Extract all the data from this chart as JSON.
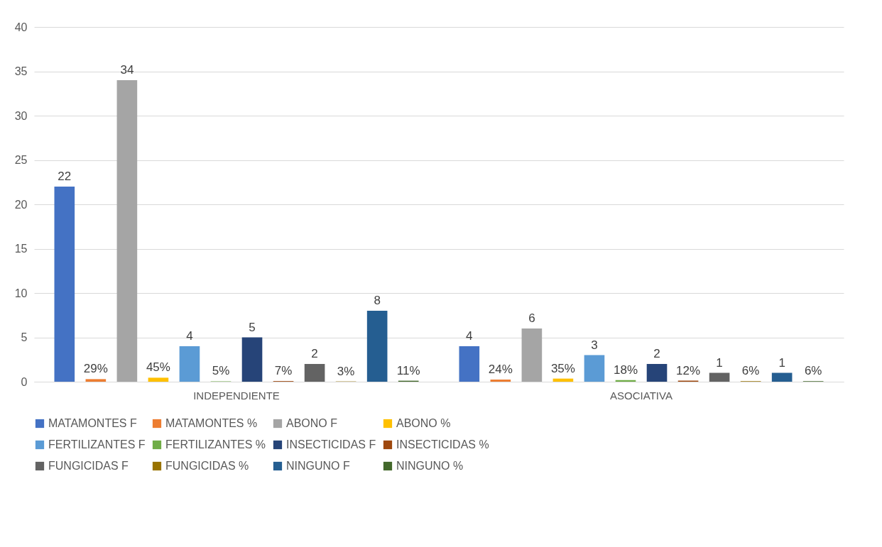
{
  "chart_data": {
    "type": "bar",
    "categories": [
      "INDEPENDIENTE",
      "ASOCIATIVA"
    ],
    "ylim": [
      0,
      40
    ],
    "yticks": [
      0,
      5,
      10,
      15,
      20,
      25,
      30,
      35,
      40
    ],
    "grid": "y",
    "legend": "bottom",
    "series": [
      {
        "name": "MATAMONTES F",
        "color": "#4472c4",
        "values": [
          22,
          4
        ],
        "value_labels": [
          "22",
          "4"
        ]
      },
      {
        "name": "MATAMONTES %",
        "color": "#ed7d31",
        "values": [
          0.29,
          0.24
        ],
        "value_labels": [
          "29%",
          "24%"
        ]
      },
      {
        "name": "ABONO F",
        "color": "#a5a5a5",
        "values": [
          34,
          6
        ],
        "value_labels": [
          "34",
          "6"
        ]
      },
      {
        "name": "ABONO %",
        "color": "#ffc000",
        "values": [
          0.45,
          0.35
        ],
        "value_labels": [
          "45%",
          "35%"
        ]
      },
      {
        "name": "FERTILIZANTES F",
        "color": "#5b9bd5",
        "values": [
          4,
          3
        ],
        "value_labels": [
          "4",
          "3"
        ]
      },
      {
        "name": "FERTILIZANTES %",
        "color": "#70ad47",
        "values": [
          0.05,
          0.18
        ],
        "value_labels": [
          "5%",
          "18%"
        ]
      },
      {
        "name": "INSECTICIDAS F",
        "color": "#264478",
        "values": [
          5,
          2
        ],
        "value_labels": [
          "5",
          "2"
        ]
      },
      {
        "name": "INSECTICIDAS %",
        "color": "#9e480e",
        "values": [
          0.07,
          0.12
        ],
        "value_labels": [
          "7%",
          "12%"
        ]
      },
      {
        "name": "FUNGICIDAS F",
        "color": "#636363",
        "values": [
          2,
          1
        ],
        "value_labels": [
          "2",
          "1"
        ]
      },
      {
        "name": "FUNGICIDAS %",
        "color": "#997300",
        "values": [
          0.03,
          0.06
        ],
        "value_labels": [
          "3%",
          "6%"
        ]
      },
      {
        "name": "NINGUNO F",
        "color": "#255e91",
        "values": [
          8,
          1
        ],
        "value_labels": [
          "8",
          "1"
        ]
      },
      {
        "name": "NINGUNO %",
        "color": "#43682b",
        "values": [
          0.11,
          0.06
        ],
        "value_labels": [
          "11%",
          "6%"
        ]
      }
    ]
  }
}
